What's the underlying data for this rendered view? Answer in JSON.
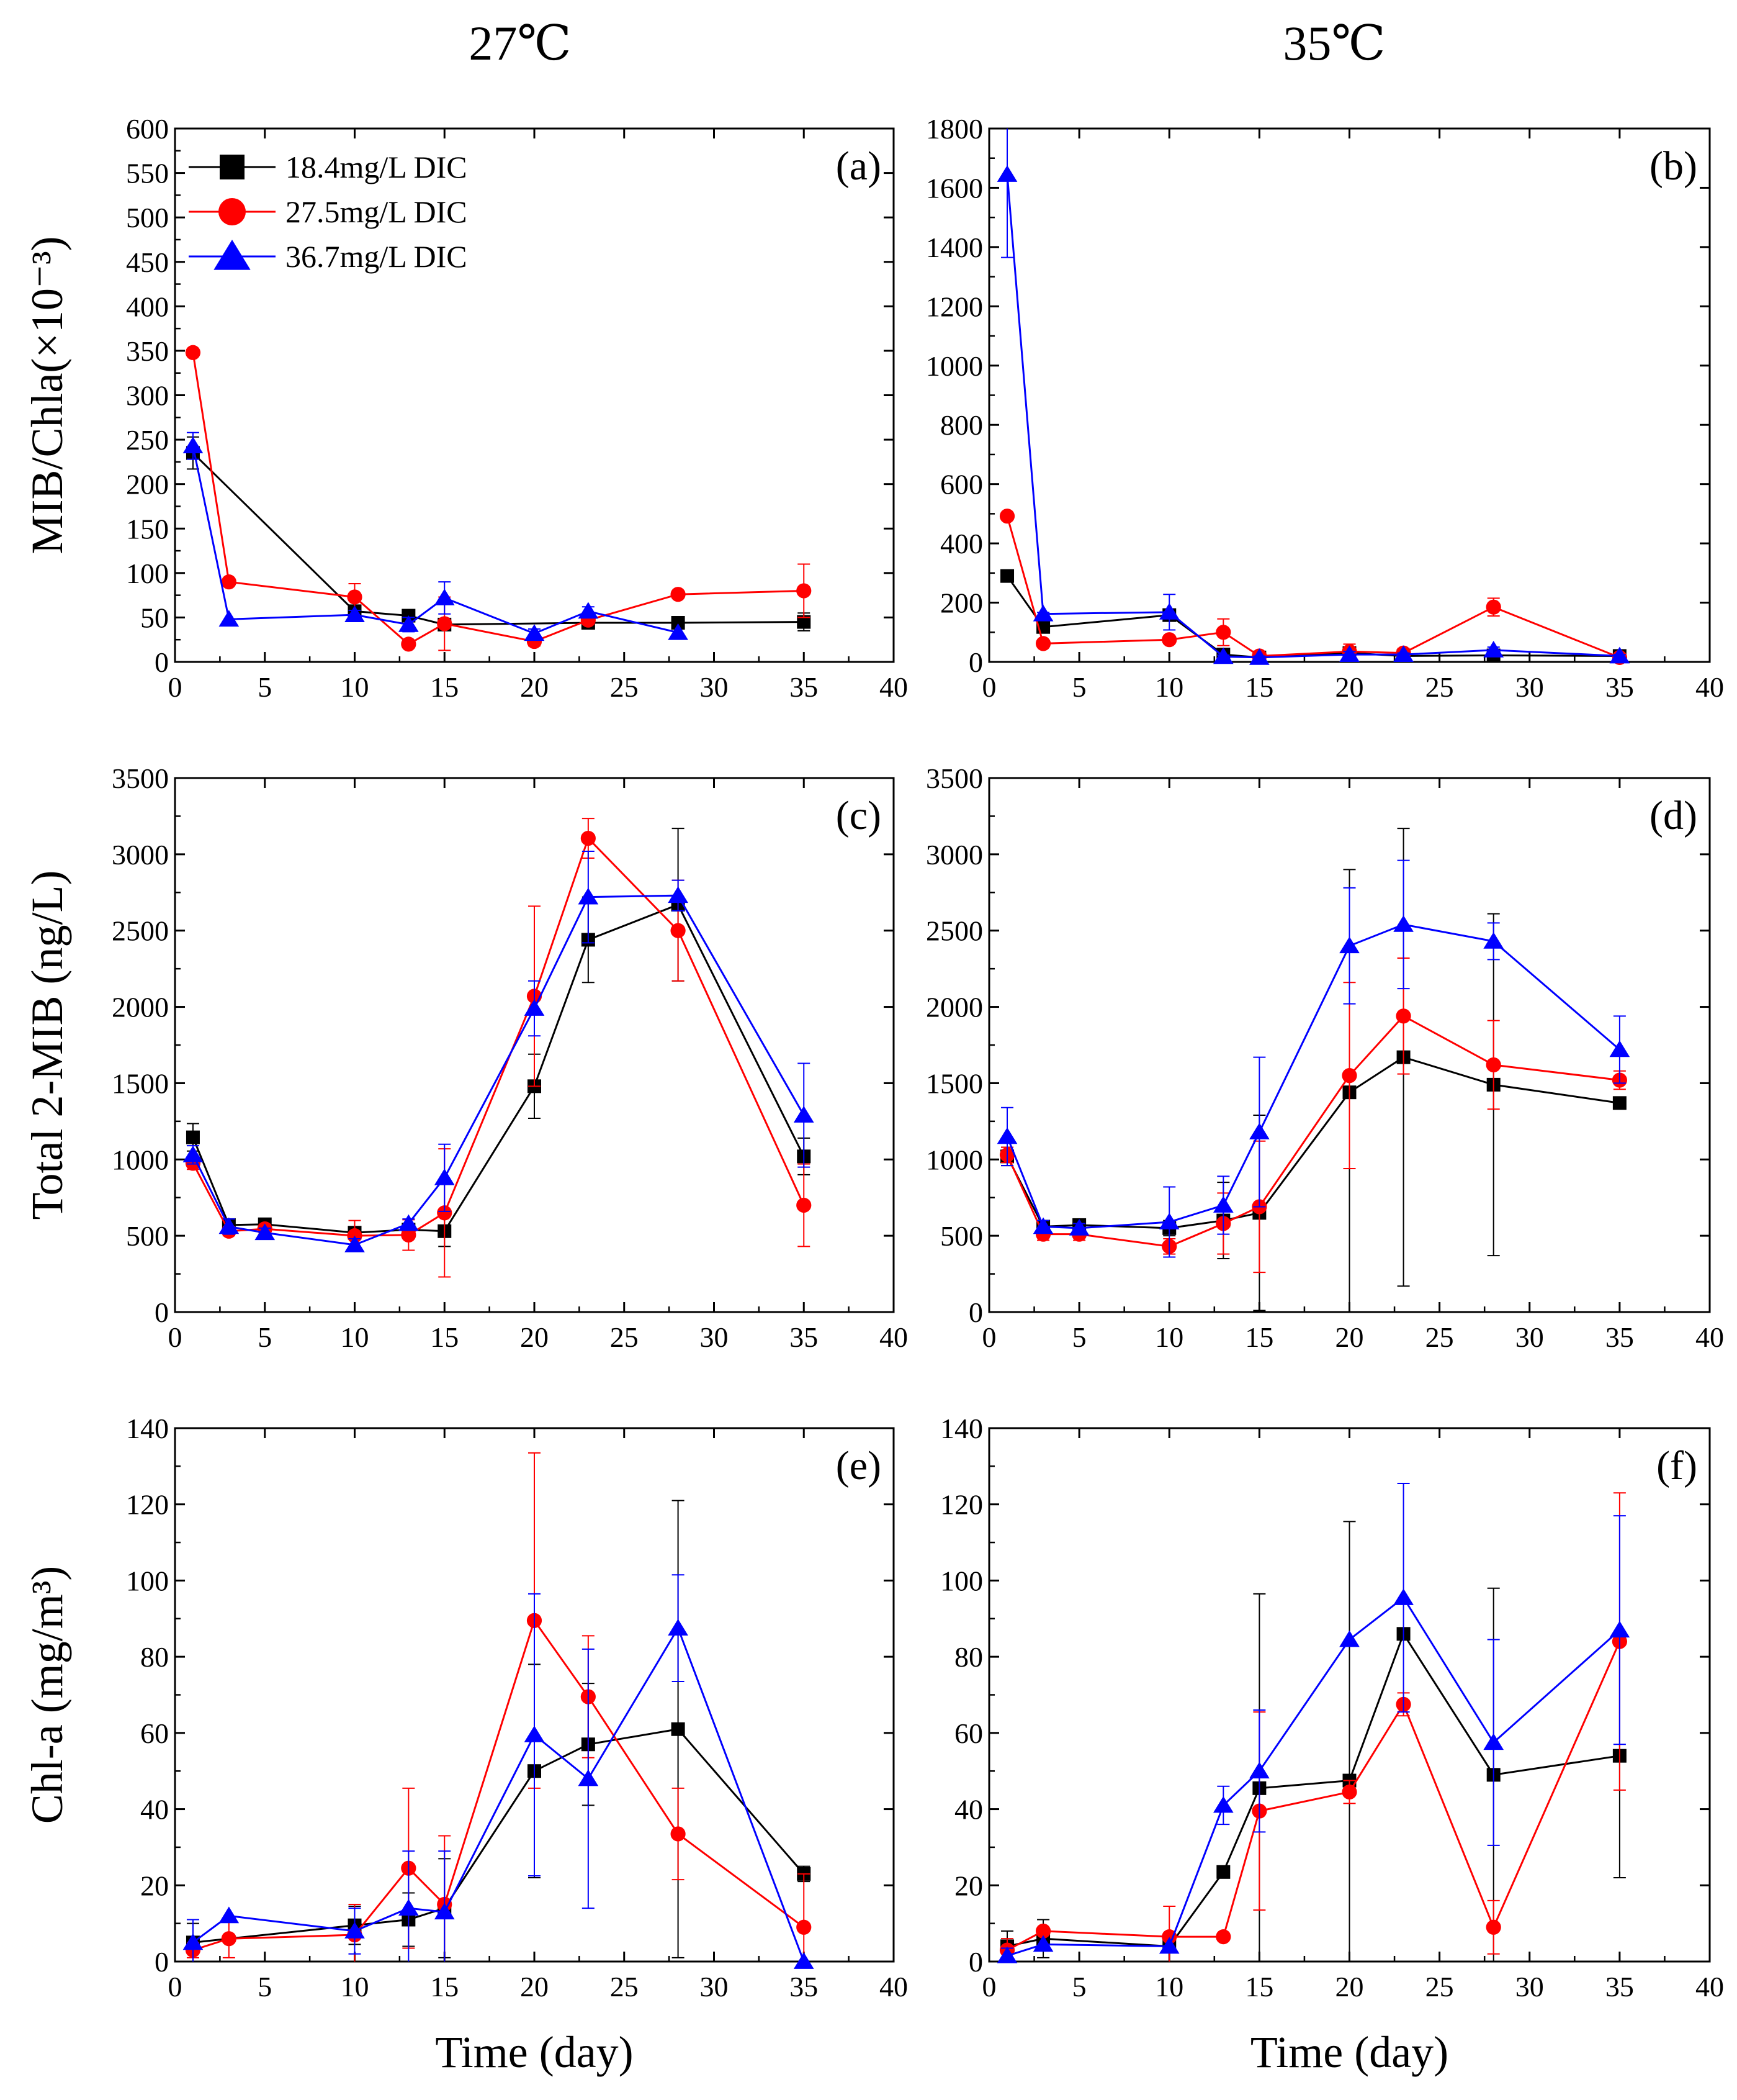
{
  "column_titles": [
    "27℃",
    "35℃"
  ],
  "colors": {
    "s1": "#000000",
    "s2": "#ff0000",
    "s3": "#0000ff"
  },
  "chart_data": [
    {
      "panel": "(a)",
      "type": "line",
      "xlabel": "",
      "ylabel": "MIB/Chla(×10⁻³)",
      "xlim": [
        0,
        40
      ],
      "ylim": [
        0,
        600
      ],
      "xticks": [
        0,
        5,
        10,
        15,
        20,
        25,
        30,
        35,
        40
      ],
      "yticks": [
        0,
        50,
        100,
        150,
        200,
        250,
        300,
        350,
        400,
        450,
        500,
        550,
        600
      ],
      "legend": "top-left",
      "series": [
        {
          "name": "18.4mg/L DIC",
          "marker": "square",
          "x": [
            1,
            10,
            13,
            15,
            23,
            28,
            35
          ],
          "y": [
            235,
            57,
            52,
            42,
            44,
            44,
            45
          ],
          "err": [
            18,
            6,
            5,
            6,
            4,
            5,
            10
          ]
        },
        {
          "name": "27.5mg/L DIC",
          "marker": "circle",
          "x": [
            1,
            3,
            10,
            13,
            15,
            20,
            23,
            28,
            35
          ],
          "y": [
            348,
            90,
            73,
            20,
            43,
            23,
            47,
            76,
            80
          ],
          "err": [
            0,
            0,
            15,
            0,
            30,
            5,
            5,
            4,
            30
          ]
        },
        {
          "name": "36.7mg/L DIC",
          "marker": "triangle",
          "x": [
            1,
            3,
            10,
            13,
            15,
            20,
            23,
            28
          ],
          "y": [
            243,
            48,
            53,
            42,
            72,
            32,
            57,
            33
          ],
          "err": [
            15,
            0,
            5,
            8,
            18,
            5,
            5,
            0
          ]
        }
      ]
    },
    {
      "panel": "(b)",
      "type": "line",
      "xlabel": "",
      "ylabel": "",
      "xlim": [
        0,
        40
      ],
      "ylim": [
        0,
        1800
      ],
      "xticks": [
        0,
        5,
        10,
        15,
        20,
        25,
        30,
        35,
        40
      ],
      "yticks": [
        0,
        200,
        400,
        600,
        800,
        1000,
        1200,
        1400,
        1600,
        1800
      ],
      "series": [
        {
          "name": "18.4mg/L DIC",
          "marker": "square",
          "x": [
            1,
            3,
            10,
            13,
            15,
            20,
            23,
            28,
            35
          ],
          "y": [
            290,
            118,
            158,
            25,
            15,
            30,
            20,
            22,
            20
          ],
          "err": [
            0,
            10,
            20,
            5,
            5,
            5,
            5,
            5,
            5
          ]
        },
        {
          "name": "27.5mg/L DIC",
          "marker": "circle",
          "x": [
            1,
            3,
            10,
            13,
            15,
            20,
            23,
            28,
            35
          ],
          "y": [
            492,
            62,
            75,
            100,
            20,
            35,
            30,
            185,
            15
          ],
          "err": [
            0,
            0,
            0,
            45,
            5,
            25,
            15,
            30,
            5
          ]
        },
        {
          "name": "36.7mg/L DIC",
          "marker": "triangle",
          "x": [
            1,
            3,
            10,
            13,
            15,
            20,
            23,
            28,
            35
          ],
          "y": [
            1645,
            162,
            168,
            18,
            15,
            25,
            25,
            40,
            20
          ],
          "err": [
            280,
            5,
            60,
            5,
            5,
            10,
            5,
            10,
            5
          ]
        }
      ]
    },
    {
      "panel": "(c)",
      "type": "line",
      "xlabel": "",
      "ylabel": "Total 2-MIB (ng/L)",
      "xlim": [
        0,
        40
      ],
      "ylim": [
        0,
        3500
      ],
      "xticks": [
        0,
        5,
        10,
        15,
        20,
        25,
        30,
        35,
        40
      ],
      "yticks": [
        0,
        500,
        1000,
        1500,
        2000,
        2500,
        3000,
        3500
      ],
      "series": [
        {
          "name": "18.4mg/L DIC",
          "marker": "square",
          "x": [
            1,
            3,
            5,
            10,
            13,
            15,
            20,
            23,
            28,
            35
          ],
          "y": [
            1145,
            570,
            575,
            520,
            540,
            530,
            1480,
            2440,
            2670,
            1020
          ],
          "err": [
            90,
            30,
            20,
            30,
            40,
            100,
            210,
            280,
            500,
            120
          ]
        },
        {
          "name": "27.5mg/L DIC",
          "marker": "circle",
          "x": [
            1,
            3,
            5,
            10,
            13,
            15,
            20,
            23,
            28,
            35
          ],
          "y": [
            975,
            530,
            545,
            500,
            505,
            650,
            2070,
            3105,
            2500,
            700
          ],
          "err": [
            40,
            30,
            30,
            100,
            100,
            420,
            590,
            130,
            330,
            270
          ]
        },
        {
          "name": "36.7mg/L DIC",
          "marker": "triangle",
          "x": [
            1,
            3,
            5,
            10,
            13,
            15,
            20,
            23,
            28,
            35
          ],
          "y": [
            1030,
            560,
            520,
            440,
            580,
            880,
            1990,
            2720,
            2730,
            1290
          ],
          "err": [
            60,
            50,
            30,
            40,
            30,
            220,
            180,
            300,
            100,
            340
          ]
        }
      ]
    },
    {
      "panel": "(d)",
      "type": "line",
      "xlabel": "",
      "ylabel": "",
      "xlim": [
        0,
        40
      ],
      "ylim": [
        0,
        3500
      ],
      "xticks": [
        0,
        5,
        10,
        15,
        20,
        25,
        30,
        35,
        40
      ],
      "yticks": [
        0,
        500,
        1000,
        1500,
        2000,
        2500,
        3000,
        3500
      ],
      "series": [
        {
          "name": "18.4mg/L DIC",
          "marker": "square",
          "x": [
            1,
            3,
            5,
            10,
            13,
            15,
            20,
            23,
            28,
            35
          ],
          "y": [
            1020,
            560,
            570,
            550,
            600,
            650,
            1440,
            1670,
            1490,
            1370
          ],
          "err": [
            60,
            40,
            30,
            50,
            250,
            640,
            1460,
            1500,
            1120,
            40
          ]
        },
        {
          "name": "27.5mg/L DIC",
          "marker": "circle",
          "x": [
            1,
            3,
            5,
            10,
            13,
            15,
            20,
            23,
            28,
            35
          ],
          "y": [
            1030,
            510,
            510,
            430,
            580,
            690,
            1550,
            1940,
            1620,
            1520
          ],
          "err": [
            50,
            40,
            40,
            50,
            200,
            430,
            610,
            380,
            290,
            60
          ]
        },
        {
          "name": "36.7mg/L DIC",
          "marker": "triangle",
          "x": [
            1,
            3,
            5,
            10,
            13,
            15,
            20,
            23,
            28,
            35
          ],
          "y": [
            1150,
            560,
            550,
            590,
            700,
            1180,
            2400,
            2540,
            2430,
            1720
          ],
          "err": [
            190,
            40,
            30,
            230,
            190,
            490,
            380,
            420,
            120,
            220
          ]
        }
      ]
    },
    {
      "panel": "(e)",
      "type": "line",
      "xlabel": "Time (day)",
      "ylabel": "Chl-a (mg/m³)",
      "xlim": [
        0,
        40
      ],
      "ylim": [
        0,
        140
      ],
      "xticks": [
        0,
        5,
        10,
        15,
        20,
        25,
        30,
        35,
        40
      ],
      "yticks": [
        0,
        20,
        40,
        60,
        80,
        100,
        120,
        140
      ],
      "series": [
        {
          "name": "18.4mg/L DIC",
          "marker": "square",
          "x": [
            1,
            10,
            13,
            15,
            20,
            23,
            28,
            35
          ],
          "y": [
            5,
            9.5,
            11,
            14,
            50,
            57,
            61,
            23
          ],
          "err": [
            5,
            5,
            7,
            13,
            28,
            16,
            60,
            2
          ]
        },
        {
          "name": "27.5mg/L DIC",
          "marker": "circle",
          "x": [
            1,
            3,
            10,
            13,
            15,
            20,
            23,
            28,
            35
          ],
          "y": [
            3,
            6,
            7,
            24.5,
            15,
            89.5,
            69.5,
            33.5,
            9
          ],
          "err": [
            2,
            5,
            8,
            21,
            18,
            44,
            16,
            12,
            14
          ]
        },
        {
          "name": "36.7mg/L DIC",
          "marker": "triangle",
          "x": [
            1,
            3,
            10,
            13,
            15,
            20,
            23,
            28,
            35
          ],
          "y": [
            5,
            12,
            8,
            14,
            13,
            59.5,
            48,
            87.5,
            0
          ],
          "err": [
            6,
            0,
            6,
            15,
            16,
            37,
            34,
            14,
            0
          ]
        }
      ]
    },
    {
      "panel": "(f)",
      "type": "line",
      "xlabel": "Time (day)",
      "ylabel": "",
      "xlim": [
        0,
        40
      ],
      "ylim": [
        0,
        140
      ],
      "xticks": [
        0,
        5,
        10,
        15,
        20,
        25,
        30,
        35,
        40
      ],
      "yticks": [
        0,
        20,
        40,
        60,
        80,
        100,
        120,
        140
      ],
      "series": [
        {
          "name": "18.4mg/L DIC",
          "marker": "square",
          "x": [
            1,
            3,
            10,
            13,
            15,
            20,
            23,
            28,
            35
          ],
          "y": [
            4,
            6,
            4,
            23.5,
            45.5,
            47.5,
            86,
            49,
            54
          ],
          "err": [
            4,
            5,
            0,
            0,
            51,
            68,
            0,
            49,
            32
          ]
        },
        {
          "name": "27.5mg/L DIC",
          "marker": "circle",
          "x": [
            1,
            3,
            10,
            13,
            15,
            20,
            23,
            28,
            35
          ],
          "y": [
            3,
            8,
            6.5,
            6.5,
            39.5,
            44.5,
            67.5,
            9,
            84
          ],
          "err": [
            3,
            0,
            8,
            0,
            26,
            3,
            3,
            7,
            39
          ]
        },
        {
          "name": "36.7mg/L DIC",
          "marker": "triangle",
          "x": [
            1,
            3,
            10,
            13,
            15,
            20,
            23,
            28,
            35
          ],
          "y": [
            1.5,
            4.5,
            4,
            41,
            50,
            84.5,
            95.5,
            57.5,
            87
          ],
          "err": [
            2,
            0,
            0,
            5,
            16,
            0,
            30,
            27,
            30
          ]
        }
      ]
    }
  ]
}
